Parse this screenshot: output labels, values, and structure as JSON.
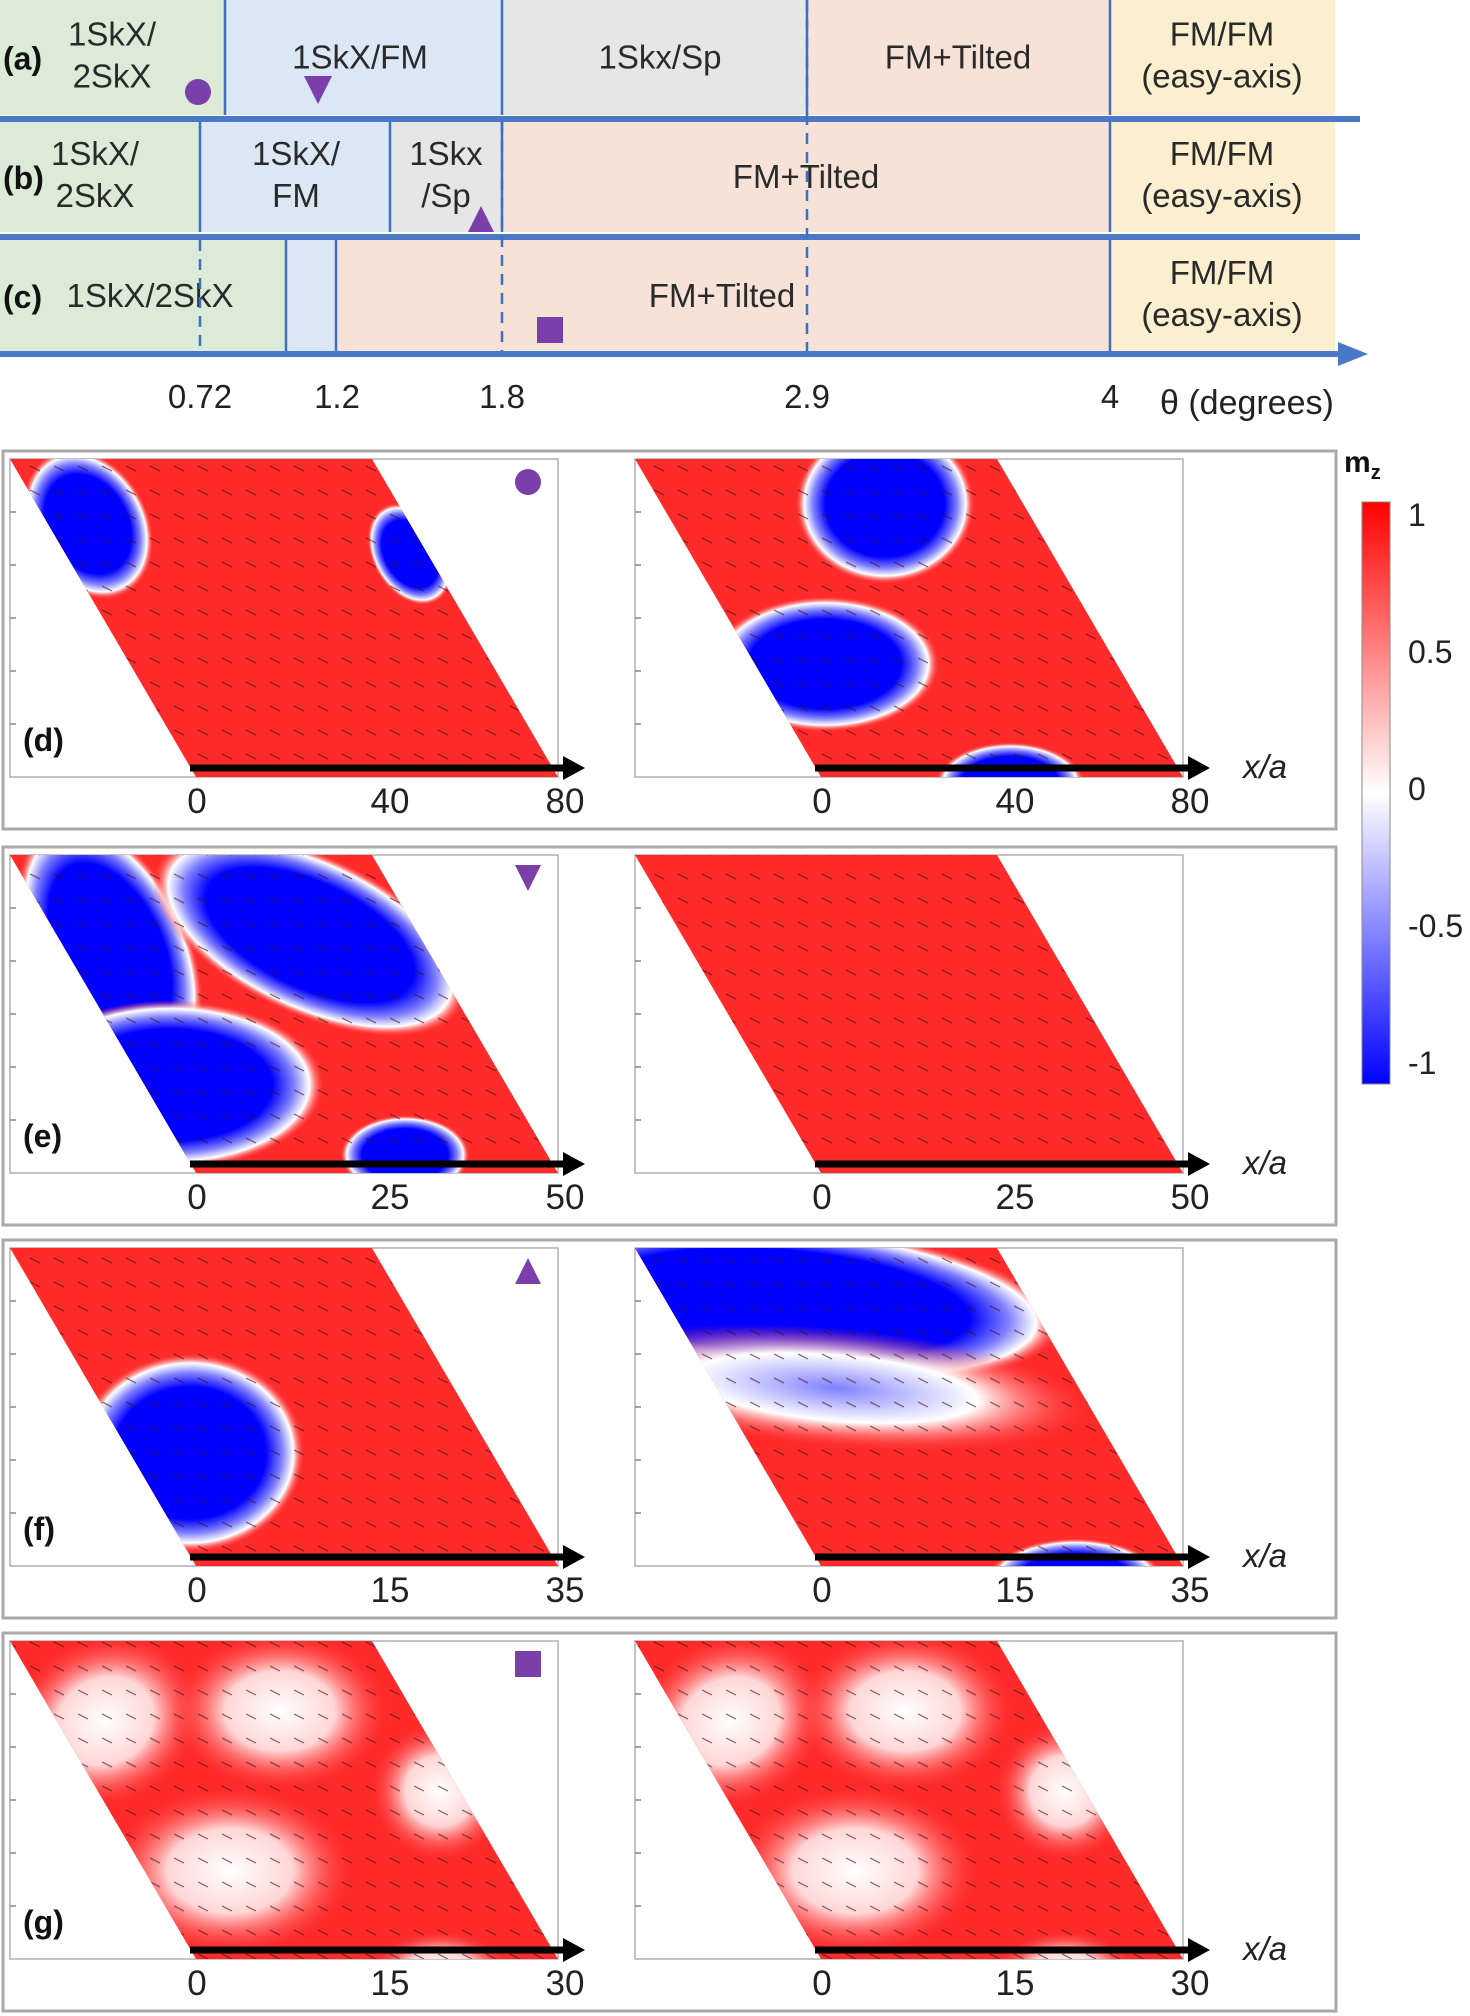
{
  "phase_diagram": {
    "row_labels": [
      "(a)",
      "(b)",
      "(c)"
    ],
    "rows": [
      {
        "segments": [
          {
            "lines": [
              "1SkX/",
              "2SkX"
            ],
            "color": "#dcebd7"
          },
          {
            "lines": [
              "1SkX/FM"
            ],
            "color": "#dbe7f5"
          },
          {
            "lines": [
              "1Skx/Sp"
            ],
            "color": "#e6e6e6"
          },
          {
            "lines": [
              "FM+Tilted"
            ],
            "color": "#f7e2d8"
          },
          {
            "lines": [
              "FM/FM",
              "(easy-axis)"
            ],
            "color": "#fbefcf"
          }
        ]
      },
      {
        "segments": [
          {
            "lines": [
              "1SkX/",
              "2SkX"
            ],
            "color": "#dcebd7"
          },
          {
            "lines": [
              "1SkX/",
              "FM"
            ],
            "color": "#dbe7f5"
          },
          {
            "lines": [
              "1Skx",
              "/Sp"
            ],
            "color": "#e6e6e6"
          },
          {
            "lines": [
              "FM+Tilted"
            ],
            "color": "#f7e2d8"
          },
          {
            "lines": [
              "FM/FM",
              "(easy-axis)"
            ],
            "color": "#fbefcf"
          }
        ]
      },
      {
        "segments": [
          {
            "lines": [
              "1SkX/2SkX"
            ],
            "color": "#dcebd7"
          },
          {
            "lines": [
              ""
            ],
            "color": "#dbe7f5"
          },
          {
            "lines": [
              "FM+Tilted"
            ],
            "color": "#f7e2d8"
          },
          {
            "lines": [
              "FM/FM",
              "(easy-axis)"
            ],
            "color": "#fbefcf"
          }
        ]
      }
    ],
    "theta_ticks": [
      "0.72",
      "1.2",
      "1.8",
      "2.9",
      "4"
    ],
    "theta_label": "θ (degrees)",
    "markers": [
      {
        "shape": "circle",
        "row": "(a)"
      },
      {
        "shape": "triangle-down",
        "row": "(a)"
      },
      {
        "shape": "triangle-up",
        "row": "(b)"
      },
      {
        "shape": "square",
        "row": "(c)"
      }
    ],
    "marker_color": "#7a3fa8"
  },
  "panels": [
    {
      "label": "(d)",
      "marker": "circle",
      "ticks": [
        "0",
        "40",
        "80"
      ],
      "xlabel": "x/a"
    },
    {
      "label": "(e)",
      "marker": "triangle-down",
      "ticks": [
        "0",
        "25",
        "50"
      ],
      "xlabel": "x/a"
    },
    {
      "label": "(f)",
      "marker": "triangle-up",
      "ticks": [
        "0",
        "15",
        "35"
      ],
      "xlabel": "x/a"
    },
    {
      "label": "(g)",
      "marker": "square",
      "ticks": [
        "0",
        "15",
        "30"
      ],
      "xlabel": "x/a"
    }
  ],
  "colorbar": {
    "title": "m",
    "title_sub": "z",
    "ticks": [
      "1",
      "0.5",
      "0",
      "-0.5",
      "-1"
    ],
    "colors": {
      "high": "#ff0000",
      "mid": "#ffffff",
      "low": "#0000ff"
    }
  }
}
